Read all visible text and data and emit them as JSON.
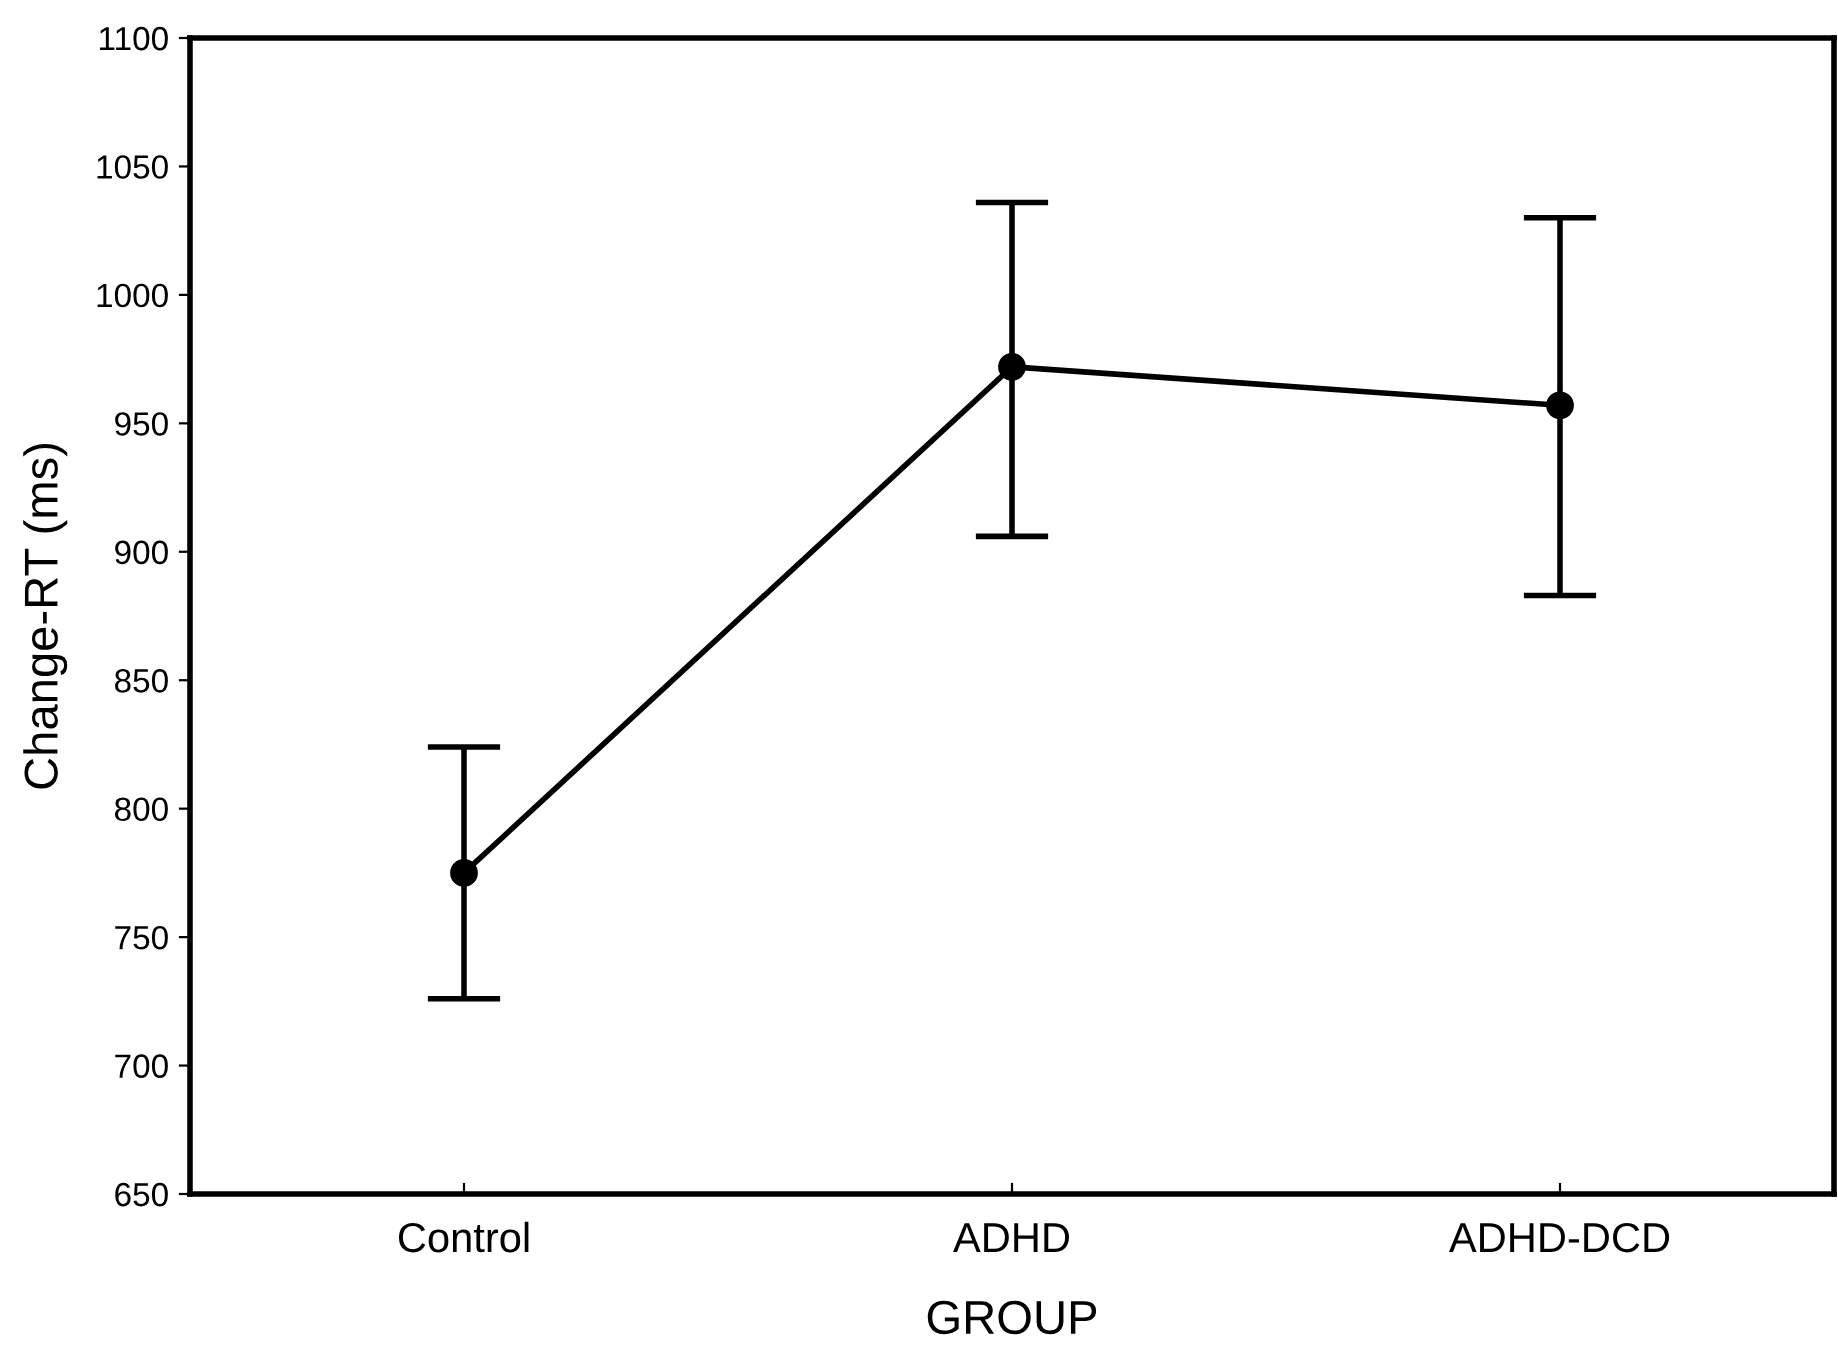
{
  "chart_data": {
    "type": "line",
    "xlabel": "GROUP",
    "ylabel": "Change-RT (ms)",
    "categories": [
      "Control",
      "ADHD",
      "ADHD-DCD"
    ],
    "series": [
      {
        "color": "#000000",
        "values": [
          775,
          972,
          957
        ],
        "errors": [
          [
            726,
            824
          ],
          [
            906,
            1036
          ],
          [
            883,
            1030
          ]
        ]
      }
    ],
    "ylim": [
      650,
      1100
    ],
    "yticks": [
      650,
      700,
      750,
      800,
      850,
      900,
      950,
      1000,
      1050,
      1100
    ],
    "marker": "circle",
    "line_style": "solid",
    "grid": false,
    "legend": false
  }
}
